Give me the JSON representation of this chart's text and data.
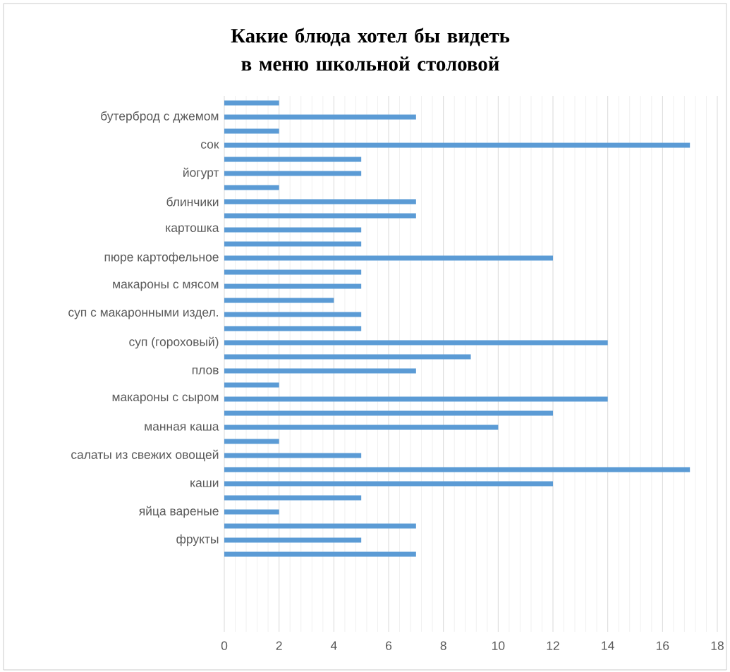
{
  "chart_data": {
    "type": "bar",
    "orientation": "horizontal",
    "title": "Какие блюда хотел бы видеть в меню школьной столовой",
    "categories": [
      null,
      "бутерброд с джемом",
      null,
      "сок",
      null,
      "йогурт",
      null,
      "блинчики",
      null,
      "картошка",
      null,
      "пюре картофельное",
      null,
      "макароны с мясом",
      null,
      "суп с макаронными издел.",
      null,
      "суп (гороховый)",
      null,
      "плов",
      null,
      "макароны с сыром",
      null,
      "манная каша",
      null,
      "салаты из свежих овощей",
      null,
      "каши",
      null,
      "яйца вареные",
      null,
      "фрукты",
      null,
      null,
      null,
      null,
      null,
      null
    ],
    "values": [
      2,
      7,
      2,
      17,
      5,
      5,
      2,
      7,
      7,
      5,
      5,
      12,
      5,
      5,
      4,
      5,
      5,
      14,
      9,
      7,
      2,
      14,
      12,
      10,
      2,
      5,
      17,
      12,
      5,
      2,
      7,
      5,
      7,
      null,
      null,
      null,
      null,
      null
    ],
    "color": "#5b9bd5",
    "xlim": [
      0,
      18
    ],
    "xticks": [
      0,
      2,
      4,
      6,
      8,
      10,
      12,
      14,
      16,
      18
    ],
    "grid": "x"
  }
}
